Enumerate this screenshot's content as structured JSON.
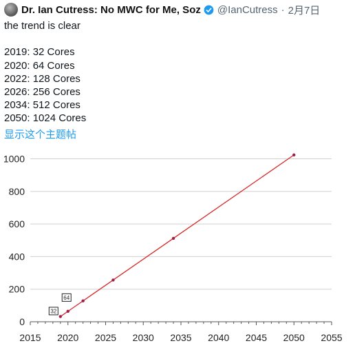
{
  "tweet": {
    "author_name": "Dr. Ian Cutress: No MWC for Me, Soz",
    "handle": "@IanCutress",
    "separator": "·",
    "date": "2月7日",
    "intro": "the trend is clear",
    "lines": [
      "2019: 32 Cores",
      "2020: 64 Cores",
      "2022: 128 Cores",
      "2026: 256 Cores",
      "2034: 512 Cores",
      "2050: 1024 Cores"
    ],
    "thread_link": "显示这个主题帖"
  },
  "icons": {
    "avatar": "avatar-image",
    "verified": "verified-badge-icon"
  },
  "colors": {
    "verified": "#1d9bf0",
    "link": "#1d9bf0",
    "line": "#d62728",
    "marker": "#9e1e4a",
    "grid": "#d0d0d0"
  },
  "chart_data": {
    "type": "line",
    "x": [
      2019,
      2020,
      2022,
      2026,
      2034,
      2050
    ],
    "series": [
      {
        "values": [
          32,
          64,
          128,
          256,
          512,
          1024
        ]
      }
    ],
    "xlim": [
      2015,
      2055
    ],
    "ylim": [
      0,
      1000
    ],
    "xticks": [
      2015,
      2020,
      2025,
      2030,
      2035,
      2040,
      2045,
      2050,
      2055
    ],
    "yticks": [
      0,
      200,
      400,
      600,
      800,
      1000
    ],
    "grid": "horizontal",
    "annotations": [
      {
        "label": "32",
        "x": 2019,
        "y": 32
      },
      {
        "label": "64",
        "x": 2020,
        "y": 64
      }
    ],
    "title": "",
    "xlabel": "",
    "ylabel": ""
  }
}
